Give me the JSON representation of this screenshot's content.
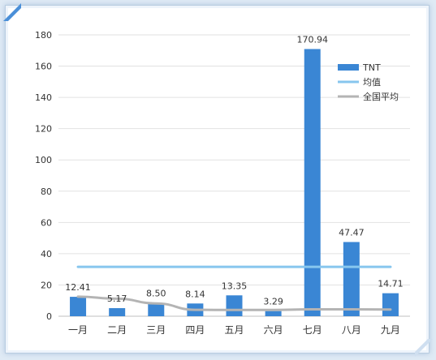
{
  "chart_data": {
    "type": "bar",
    "categories": [
      "一月",
      "二月",
      "三月",
      "四月",
      "五月",
      "六月",
      "七月",
      "八月",
      "九月"
    ],
    "series": [
      {
        "name": "TNT",
        "kind": "bar",
        "color": "#3a86d4",
        "values": [
          12.41,
          5.17,
          8.5,
          8.14,
          13.35,
          3.29,
          170.94,
          47.47,
          14.71
        ],
        "labels": [
          "12.41",
          "5.17",
          "8.50",
          "8.14",
          "13.35",
          "3.29",
          "170.94",
          "47.47",
          "14.71"
        ]
      },
      {
        "name": "均值",
        "kind": "line",
        "color": "#87c6ee",
        "values": [
          31.6,
          31.6,
          31.6,
          31.6,
          31.6,
          31.6,
          31.6,
          31.6,
          31.6
        ]
      },
      {
        "name": "全国平均",
        "kind": "line",
        "color": "#b4b4b4",
        "values": [
          12.5,
          11.2,
          8.2,
          4.1,
          4.0,
          4.0,
          4.4,
          4.4,
          4.3
        ]
      }
    ],
    "ylim": [
      0,
      180
    ],
    "yticks": [
      0,
      20,
      40,
      60,
      80,
      100,
      120,
      140,
      160,
      180
    ],
    "grid": true,
    "legend": "top-right"
  }
}
